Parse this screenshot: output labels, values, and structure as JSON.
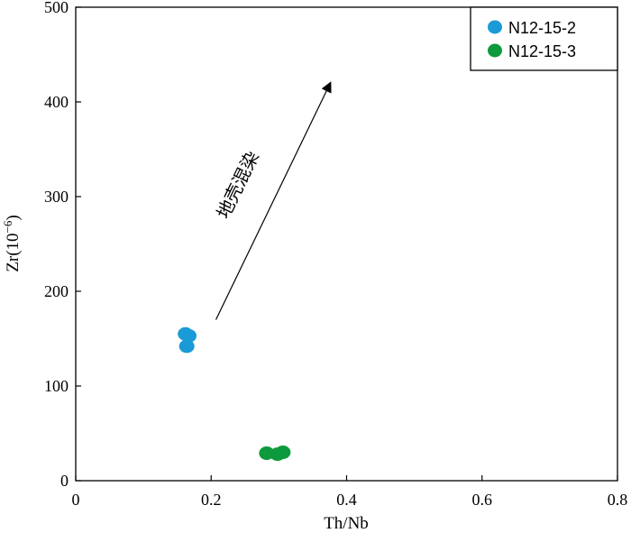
{
  "chart_data": {
    "type": "scatter",
    "xlabel": "Th/Nb",
    "ylabel_base": "Zr(10",
    "ylabel_exp": "−6",
    "ylabel_close": ")",
    "xlim": [
      0,
      0.8
    ],
    "ylim": [
      0,
      500
    ],
    "x_ticks": [
      0,
      0.2,
      0.4,
      0.6,
      0.8
    ],
    "x_tick_labels": [
      "0",
      "0.2",
      "0.4",
      "0.6",
      "0.8"
    ],
    "y_ticks": [
      0,
      100,
      200,
      300,
      400,
      500
    ],
    "y_tick_labels": [
      "0",
      "100",
      "200",
      "300",
      "400",
      "500"
    ],
    "grid": false,
    "legend": "top-right",
    "series": [
      {
        "name": "N12-15-2",
        "color": "#1a9ad7",
        "points": [
          [
            0.162,
            155
          ],
          [
            0.167,
            153
          ],
          [
            0.164,
            142
          ]
        ]
      },
      {
        "name": "N12-15-3",
        "color": "#0d9a3c",
        "points": [
          [
            0.282,
            29
          ],
          [
            0.298,
            28
          ],
          [
            0.306,
            30
          ]
        ]
      }
    ],
    "annotations": [
      {
        "type": "arrow",
        "from": [
          0.207,
          170
        ],
        "to": [
          0.376,
          420
        ],
        "text": "地壳混染"
      }
    ]
  }
}
